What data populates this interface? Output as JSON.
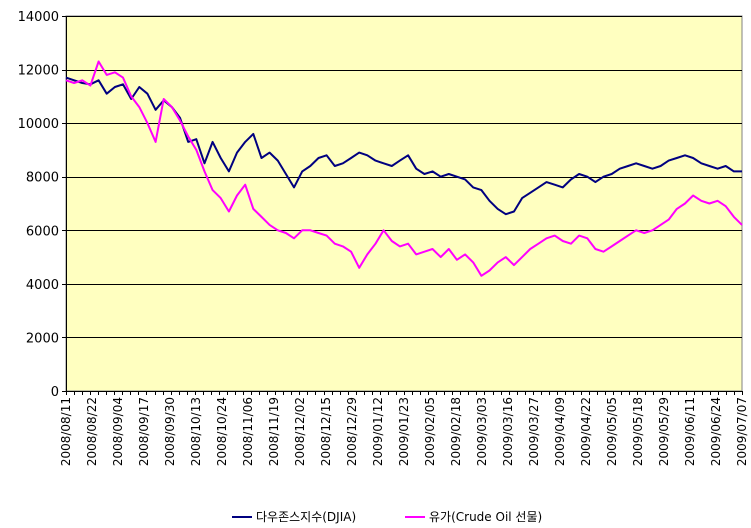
{
  "chart_data": {
    "type": "line",
    "title": "",
    "xlabel": "",
    "ylabel": "",
    "ylim": [
      0,
      14000
    ],
    "yticks": [
      0,
      2000,
      4000,
      6000,
      8000,
      10000,
      12000,
      14000
    ],
    "ytick_labels": [
      "0",
      "2000",
      "4000",
      "6000",
      "8000",
      "10000",
      "12000",
      "14000"
    ],
    "x_tick_labels": [
      "2008/08/11",
      "2008/08/22",
      "2008/09/04",
      "2008/09/17",
      "2008/09/30",
      "2008/10/13",
      "2008/10/24",
      "2008/11/06",
      "2008/11/19",
      "2008/12/02",
      "2008/12/15",
      "2008/12/29",
      "2009/01/12",
      "2009/01/23",
      "2009/02/05",
      "2009/02/18",
      "2009/03/03",
      "2009/03/16",
      "2009/03/27",
      "2009/04/09",
      "2009/04/22",
      "2009/05/05",
      "2009/05/18",
      "2009/05/29",
      "2009/06/11",
      "2009/06/24",
      "2009/07/07"
    ],
    "grid": true,
    "legend_position": "bottom",
    "plot_background": "#ffffc0",
    "series": [
      {
        "name": "다우존스지수(DJIA)",
        "color": "#000080",
        "values": [
          11700,
          11600,
          11500,
          11450,
          11600,
          11100,
          11350,
          11450,
          10900,
          11350,
          11100,
          10500,
          10850,
          10600,
          10200,
          9300,
          9400,
          8500,
          9300,
          8700,
          8200,
          8900,
          9300,
          9600,
          8700,
          8900,
          8600,
          8100,
          7600,
          8200,
          8400,
          8700,
          8800,
          8400,
          8500,
          8700,
          8900,
          8800,
          8600,
          8500,
          8400,
          8600,
          8800,
          8300,
          8100,
          8200,
          8000,
          8100,
          8000,
          7900,
          7600,
          7500,
          7100,
          6800,
          6600,
          6700,
          7200,
          7400,
          7600,
          7800,
          7700,
          7600,
          7900,
          8100,
          8000,
          7800,
          8000,
          8100,
          8300,
          8400,
          8500,
          8400,
          8300,
          8400,
          8600,
          8700,
          8800,
          8700,
          8500,
          8400,
          8300,
          8400,
          8200,
          8200
        ]
      },
      {
        "name": "유가(Crude Oil 선물)",
        "color": "#ff00ff",
        "values": [
          11600,
          11500,
          11600,
          11400,
          12300,
          11800,
          11900,
          11700,
          11000,
          10600,
          10000,
          9300,
          10900,
          10600,
          10100,
          9500,
          9000,
          8200,
          7500,
          7200,
          6700,
          7300,
          7700,
          6800,
          6500,
          6200,
          6000,
          5900,
          5700,
          6000,
          6000,
          5900,
          5800,
          5500,
          5400,
          5200,
          4600,
          5100,
          5500,
          6000,
          5600,
          5400,
          5500,
          5100,
          5200,
          5300,
          5000,
          5300,
          4900,
          5100,
          4800,
          4300,
          4500,
          4800,
          5000,
          4700,
          5000,
          5300,
          5500,
          5700,
          5800,
          5600,
          5500,
          5800,
          5700,
          5300,
          5200,
          5400,
          5600,
          5800,
          6000,
          5900,
          6000,
          6200,
          6400,
          6800,
          7000,
          7300,
          7100,
          7000,
          7100,
          6900,
          6500,
          6200
        ]
      }
    ]
  }
}
